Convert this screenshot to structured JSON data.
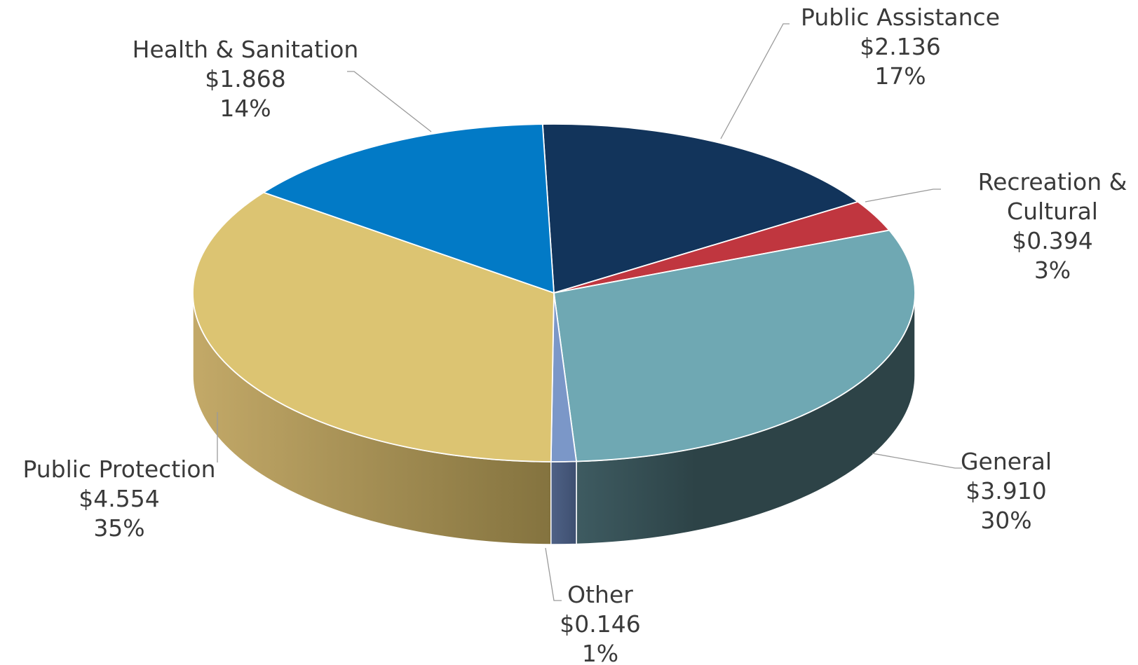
{
  "chart_data": {
    "type": "pie",
    "title": "",
    "slices": [
      {
        "label": "Public Assistance",
        "value": 2.136,
        "value_label": "$2.136",
        "percent_label": "17%",
        "color": "#12345B",
        "side_color": "#0B2340"
      },
      {
        "label": "Recreation & Cultural",
        "label_lines": [
          "Recreation &",
          "Cultural"
        ],
        "value": 0.394,
        "value_label": "$0.394",
        "percent_label": "3%",
        "color": "#C0363F",
        "side_color": "#8A242B"
      },
      {
        "label": "General",
        "value": 3.91,
        "value_label": "$3.910",
        "percent_label": "30%",
        "color": "#6FA8B3",
        "side_color": "#2C4348"
      },
      {
        "label": "Other",
        "value": 0.146,
        "value_label": "$0.146",
        "percent_label": "1%",
        "color": "#7B97C8",
        "side_color": "#4A5A78"
      },
      {
        "label": "Public Protection",
        "value": 4.554,
        "value_label": "$4.554",
        "percent_label": "35%",
        "color": "#DCC472",
        "side_color": "#A89450"
      },
      {
        "label": "Health & Sanitation",
        "value": 1.868,
        "value_label": "$1.868",
        "percent_label": "14%",
        "color": "#027AC6",
        "side_color": "#015A92"
      }
    ]
  }
}
